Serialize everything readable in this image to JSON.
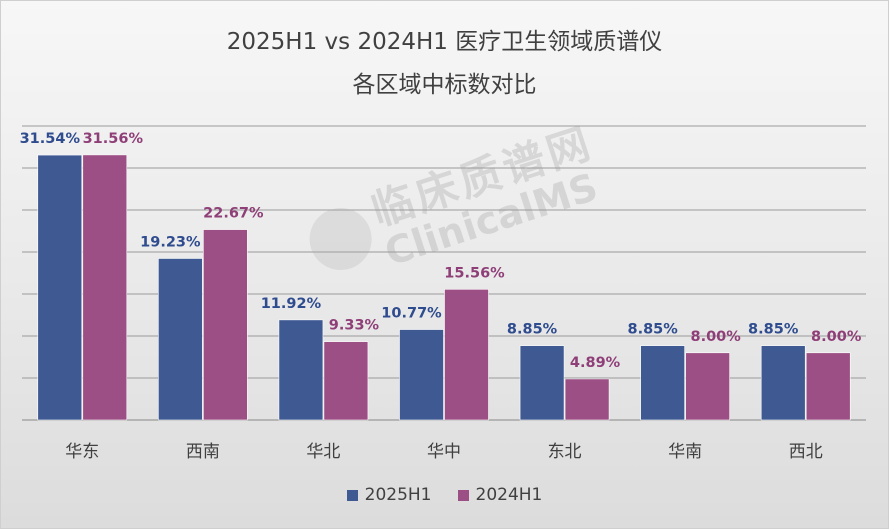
{
  "chart_data": {
    "type": "bar",
    "title": "2025H1 vs 2024H1 医疗卫生领域质谱仪",
    "subtitle": "各区域中标数对比",
    "categories": [
      "华东",
      "西南",
      "华北",
      "华中",
      "东北",
      "华南",
      "西北"
    ],
    "series": [
      {
        "name": "2025H1",
        "values": [
          31.54,
          19.23,
          11.92,
          10.77,
          8.85,
          8.85,
          8.85
        ],
        "labels": [
          "31.54%",
          "19.23%",
          "11.92%",
          "10.77%",
          "8.85%",
          "8.85%",
          "8.85%"
        ]
      },
      {
        "name": "2024H1",
        "values": [
          31.56,
          22.67,
          9.33,
          15.56,
          4.89,
          8.0,
          8.0
        ],
        "labels": [
          "31.56%",
          "22.67%",
          "9.33%",
          "15.56%",
          "4.89%",
          "8.00%",
          "8.00%"
        ]
      }
    ],
    "ylim": [
      0,
      35
    ],
    "grid": true,
    "legend_position": "bottom",
    "colors": {
      "2025H1": "#3f5a93",
      "2024H1": "#9c4f84",
      "label2025": "#2f4c8e",
      "label2024": "#8f3f78"
    }
  },
  "watermark": {
    "cn": "临床质谱网",
    "en": "ClinicalMS"
  }
}
